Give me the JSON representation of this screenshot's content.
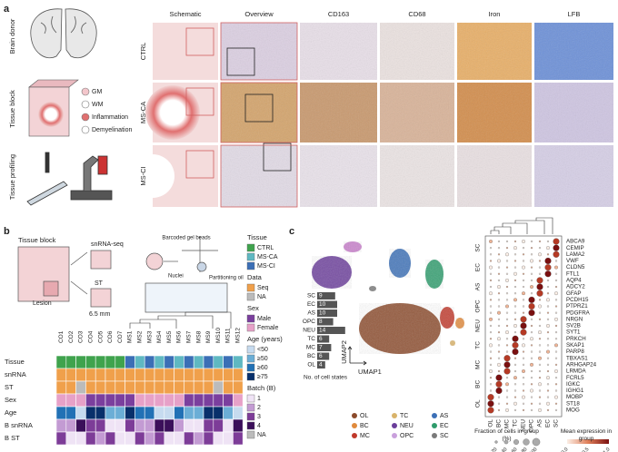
{
  "panel_a": {
    "label": "a",
    "steps": [
      "Brain donor",
      "Tissue block",
      "Tissue profiling"
    ],
    "legend": [
      "GM",
      "WM",
      "Inflammation",
      "Demyelination"
    ],
    "columns": [
      "Schematic",
      "Overview",
      "CD163",
      "CD68",
      "Iron",
      "LFB"
    ],
    "rows": [
      "CTRL",
      "MS-CA",
      "MS-CI"
    ]
  },
  "panel_b": {
    "label": "b",
    "schematic": {
      "tissue_block": "Tissue block",
      "lesion": "Lesion",
      "snrna": "snRNA-seq",
      "st": "ST",
      "size": "6.5 mm",
      "beads": "Barcoded gel beads",
      "nuclei": "Nuclei",
      "oil": "Partitioning oil"
    },
    "samples": [
      "CO1",
      "CO2",
      "CO3",
      "CO4",
      "CO5",
      "CO6",
      "CO7",
      "MS1",
      "MS2",
      "MS3",
      "MS4",
      "MS5",
      "MS6",
      "MS7",
      "MS8",
      "MS9",
      "MS10",
      "MS11",
      "MS12"
    ],
    "rows": [
      "Tissue",
      "snRNA",
      "ST",
      "Sex",
      "Age",
      "B snRNA",
      "B ST"
    ],
    "legend": [
      {
        "title": "Tissue",
        "items": [
          "CTRL",
          "MS-CA",
          "MS-CI"
        ]
      },
      {
        "title": "Data",
        "items": [
          "Seq",
          "NA"
        ]
      },
      {
        "title": "Sex",
        "items": [
          "Male",
          "Female"
        ]
      },
      {
        "title": "Age (years)",
        "items": [
          "<50",
          "≥50",
          "≥60",
          "≥75"
        ]
      },
      {
        "title": "Batch (B)",
        "items": [
          "1",
          "2",
          "3",
          "4",
          "NA"
        ]
      }
    ]
  },
  "panel_c": {
    "label": "c",
    "umap_x": "UMAP1",
    "umap_y": "UMAP2",
    "cell_states": {
      "title": "No. of cell states",
      "categories": [
        "SC",
        "EC",
        "AS",
        "OPC",
        "NEU",
        "TC",
        "MC",
        "BC",
        "OL"
      ],
      "values": [
        9,
        10,
        10,
        8,
        14,
        6,
        7,
        6,
        4
      ]
    },
    "cell_types": [
      "OL",
      "BC",
      "MC",
      "TC",
      "NEU",
      "OPC",
      "AS",
      "EC",
      "SC"
    ],
    "dotplot": {
      "columns": [
        "OL",
        "BC",
        "MC",
        "TC",
        "NEU",
        "OPC",
        "AS",
        "EC",
        "SC"
      ],
      "groups": [
        "SC",
        "EC",
        "AS",
        "OPC",
        "NEU",
        "TC",
        "MC",
        "BC",
        "OL"
      ],
      "genes": [
        "ABCA9",
        "CEMIP",
        "LAMA2",
        "VWF",
        "CLDN5",
        "FTL1",
        "AQP4",
        "ADCY2",
        "GFAP",
        "PCDH15",
        "PTPRZ1",
        "PDGFRA",
        "NRGN",
        "SV2B",
        "SYT1",
        "PRKCH",
        "SKAP1",
        "PARP8",
        "TBXAS1",
        "ARHGAP24",
        "LRMDA",
        "FCRL5",
        "IGKC",
        "IGHG1",
        "MOBP",
        "ST18",
        "MOG"
      ],
      "size_legend": {
        "title": "Fraction of cells in group (%)",
        "ticks": [
          20,
          40,
          60,
          80,
          100
        ]
      },
      "color_legend": {
        "title": "Mean expression in group",
        "ticks": [
          "0.0",
          "0.5",
          "1.0"
        ]
      }
    }
  }
}
